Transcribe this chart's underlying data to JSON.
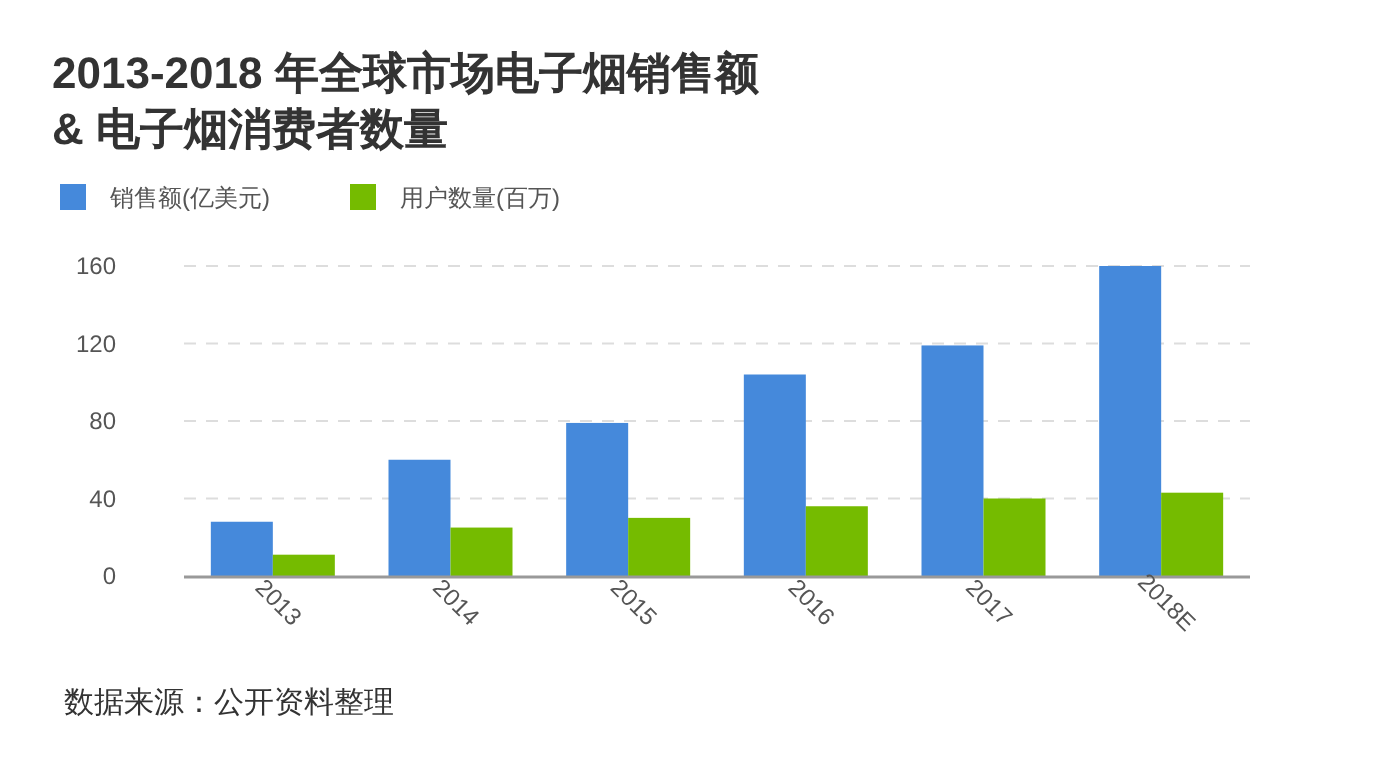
{
  "chart_data": {
    "type": "bar",
    "title": "2013-2018 年全球市场电子烟销售额\n& 电子烟消费者数量",
    "categories": [
      "2013",
      "2014",
      "2015",
      "2016",
      "2017",
      "2018E"
    ],
    "series": [
      {
        "name": "销售额(亿美元)",
        "color": "#4589db",
        "values": [
          28,
          60,
          79,
          104,
          119,
          160
        ]
      },
      {
        "name": "用户数量(百万)",
        "color": "#75bb00",
        "values": [
          11,
          25,
          30,
          36,
          40,
          43
        ]
      }
    ],
    "ylim": [
      0,
      160
    ],
    "yticks": [
      0,
      40,
      80,
      120,
      160
    ],
    "grid": "y",
    "legend": "top left",
    "annotations": [
      "数据来源：公开资料整理"
    ]
  }
}
